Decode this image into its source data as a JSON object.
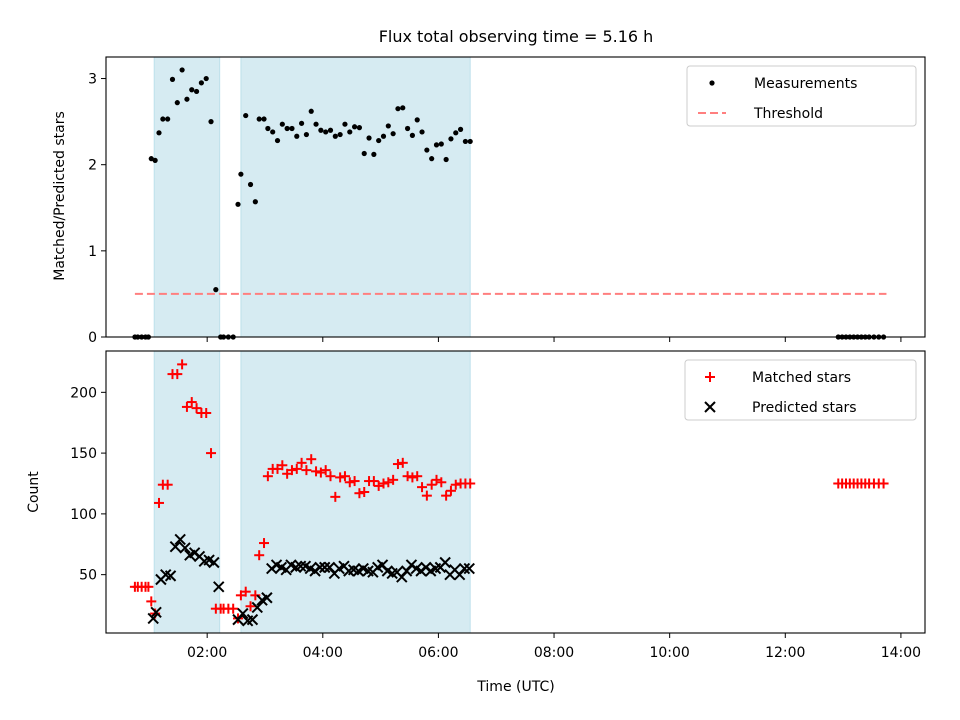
{
  "chart_data": [
    {
      "type": "scatter",
      "title": "Flux total observing time = 5.16 h",
      "ylabel": "Matched/Predicted stars",
      "xlim": [
        "00:15",
        "14:25"
      ],
      "ylim": [
        0,
        3.25
      ],
      "y_ticks": [
        "0",
        "1",
        "2",
        "3"
      ],
      "grid": false,
      "legend": "top-right",
      "shaded_intervals": [
        [
          "01:05",
          "02:13"
        ],
        [
          "02:35",
          "06:33"
        ]
      ],
      "shade_color": "#add8e6",
      "series": [
        {
          "name": "Measurements",
          "marker": "dot",
          "color": "#000000",
          "x": [
            "00:45",
            "00:48",
            "00:52",
            "00:56",
            "00:59",
            "01:02",
            "01:06",
            "01:10",
            "01:14",
            "01:19",
            "01:24",
            "01:29",
            "01:34",
            "01:39",
            "01:44",
            "01:49",
            "01:54",
            "01:59",
            "02:04",
            "02:09",
            "02:14",
            "02:17",
            "02:22",
            "02:27",
            "02:32",
            "02:35",
            "02:40",
            "02:45",
            "02:50",
            "02:54",
            "02:59",
            "03:03",
            "03:08",
            "03:13",
            "03:18",
            "03:23",
            "03:28",
            "03:33",
            "03:38",
            "03:43",
            "03:48",
            "03:53",
            "03:58",
            "04:03",
            "04:08",
            "04:13",
            "04:18",
            "04:23",
            "04:28",
            "04:33",
            "04:38",
            "04:43",
            "04:48",
            "04:53",
            "04:58",
            "05:03",
            "05:08",
            "05:13",
            "05:18",
            "05:23",
            "05:28",
            "05:33",
            "05:38",
            "05:43",
            "05:48",
            "05:53",
            "05:58",
            "06:03",
            "06:08",
            "06:13",
            "06:18",
            "06:23",
            "06:28",
            "06:33",
            "12:55",
            "12:59",
            "13:03",
            "13:07",
            "13:11",
            "13:15",
            "13:19",
            "13:23",
            "13:27",
            "13:32",
            "13:37",
            "13:42"
          ],
          "y": [
            0,
            0,
            0,
            0,
            0,
            2.07,
            2.05,
            2.37,
            2.53,
            2.53,
            2.99,
            2.72,
            3.1,
            2.76,
            2.87,
            2.85,
            2.95,
            3.0,
            2.5,
            0.55,
            0,
            0,
            0,
            0,
            1.54,
            1.89,
            2.57,
            1.77,
            1.57,
            2.53,
            2.53,
            2.42,
            2.38,
            2.28,
            2.47,
            2.42,
            2.42,
            2.33,
            2.48,
            2.35,
            2.62,
            2.47,
            2.4,
            2.38,
            2.4,
            2.33,
            2.35,
            2.47,
            2.38,
            2.44,
            2.43,
            2.13,
            2.31,
            2.12,
            2.28,
            2.33,
            2.45,
            2.36,
            2.65,
            2.66,
            2.42,
            2.34,
            2.52,
            2.38,
            2.17,
            2.07,
            2.23,
            2.24,
            2.06,
            2.3,
            2.37,
            2.41,
            2.27,
            2.27,
            0,
            0,
            0,
            0,
            0,
            0,
            0,
            0,
            0,
            0,
            0,
            0
          ]
        },
        {
          "name": "Threshold",
          "style": "dashed",
          "color": "#ff7f7f",
          "x": [
            "00:45",
            "13:45"
          ],
          "y": [
            0.5,
            0.5
          ]
        }
      ]
    },
    {
      "type": "scatter",
      "xlabel": "Time (UTC)",
      "ylabel": "Count",
      "xlim": [
        "00:15",
        "14:25"
      ],
      "x_ticks": [
        "02:00",
        "04:00",
        "06:00",
        "08:00",
        "10:00",
        "12:00",
        "14:00"
      ],
      "ylim": [
        2,
        234
      ],
      "y_ticks": [
        "50",
        "100",
        "150",
        "200"
      ],
      "grid": false,
      "legend": "top-right",
      "shaded_intervals": [
        [
          "01:05",
          "02:13"
        ],
        [
          "02:35",
          "06:33"
        ]
      ],
      "shade_color": "#add8e6",
      "series": [
        {
          "name": "Matched stars",
          "marker": "plus",
          "color": "#ff0000",
          "x": [
            "00:45",
            "00:48",
            "00:52",
            "00:56",
            "00:59",
            "01:02",
            "01:06",
            "01:10",
            "01:14",
            "01:19",
            "01:24",
            "01:29",
            "01:34",
            "01:39",
            "01:44",
            "01:49",
            "01:54",
            "01:59",
            "02:04",
            "02:09",
            "02:14",
            "02:17",
            "02:22",
            "02:27",
            "02:32",
            "02:35",
            "02:40",
            "02:45",
            "02:50",
            "02:54",
            "02:59",
            "03:03",
            "03:08",
            "03:13",
            "03:18",
            "03:23",
            "03:28",
            "03:33",
            "03:38",
            "03:43",
            "03:48",
            "03:53",
            "03:58",
            "04:03",
            "04:08",
            "04:13",
            "04:18",
            "04:23",
            "04:28",
            "04:33",
            "04:38",
            "04:43",
            "04:48",
            "04:53",
            "04:58",
            "05:03",
            "05:08",
            "05:13",
            "05:18",
            "05:23",
            "05:28",
            "05:33",
            "05:38",
            "05:43",
            "05:48",
            "05:53",
            "05:58",
            "06:03",
            "06:08",
            "06:13",
            "06:18",
            "06:23",
            "06:28",
            "06:33",
            "12:55",
            "12:59",
            "13:03",
            "13:07",
            "13:11",
            "13:15",
            "13:19",
            "13:23",
            "13:27",
            "13:32",
            "13:37",
            "13:42"
          ],
          "y": [
            40,
            40,
            40,
            40,
            40,
            28,
            18,
            109,
            124,
            124,
            215,
            215,
            223,
            188,
            192,
            187,
            183,
            183,
            150,
            22,
            22,
            22,
            22,
            22,
            14,
            33,
            36,
            24,
            33,
            66,
            76,
            131,
            137,
            137,
            140,
            133,
            136,
            137,
            142,
            136,
            145,
            135,
            134,
            136,
            131,
            114,
            130,
            131,
            126,
            127,
            117,
            118,
            127,
            127,
            123,
            125,
            126,
            128,
            141,
            142,
            131,
            130,
            131,
            122,
            115,
            124,
            128,
            126,
            115,
            119,
            124,
            125,
            125,
            125,
            125,
            125,
            125,
            125,
            125,
            125,
            125,
            125,
            125,
            125,
            125,
            125
          ]
        },
        {
          "name": "Predicted stars",
          "marker": "x",
          "color": "#000000",
          "x": [
            "01:04",
            "01:07",
            "01:12",
            "01:17",
            "01:22",
            "01:27",
            "01:32",
            "01:37",
            "01:42",
            "01:47",
            "01:52",
            "01:57",
            "02:02",
            "02:07",
            "02:12",
            "02:32",
            "02:37",
            "02:42",
            "02:47",
            "02:52",
            "02:57",
            "03:02",
            "03:07",
            "03:12",
            "03:17",
            "03:22",
            "03:27",
            "03:32",
            "03:37",
            "03:42",
            "03:47",
            "03:52",
            "03:57",
            "04:02",
            "04:07",
            "04:12",
            "04:17",
            "04:22",
            "04:27",
            "04:32",
            "04:37",
            "04:42",
            "04:47",
            "04:52",
            "04:57",
            "05:02",
            "05:07",
            "05:12",
            "05:17",
            "05:22",
            "05:27",
            "05:32",
            "05:37",
            "05:42",
            "05:47",
            "05:52",
            "05:57",
            "06:02",
            "06:07",
            "06:12",
            "06:17",
            "06:22",
            "06:27",
            "06:32"
          ],
          "y": [
            14,
            19,
            46,
            50,
            49,
            73,
            79,
            72,
            66,
            68,
            65,
            61,
            62,
            60,
            40,
            13,
            18,
            12,
            13,
            23,
            29,
            31,
            55,
            58,
            56,
            54,
            58,
            56,
            57,
            57,
            55,
            53,
            56,
            56,
            56,
            51,
            55,
            57,
            53,
            54,
            53,
            55,
            53,
            52,
            56,
            58,
            53,
            51,
            52,
            48,
            53,
            58,
            55,
            53,
            56,
            53,
            55,
            56,
            60,
            50,
            54,
            50,
            55,
            55
          ]
        }
      ]
    }
  ]
}
